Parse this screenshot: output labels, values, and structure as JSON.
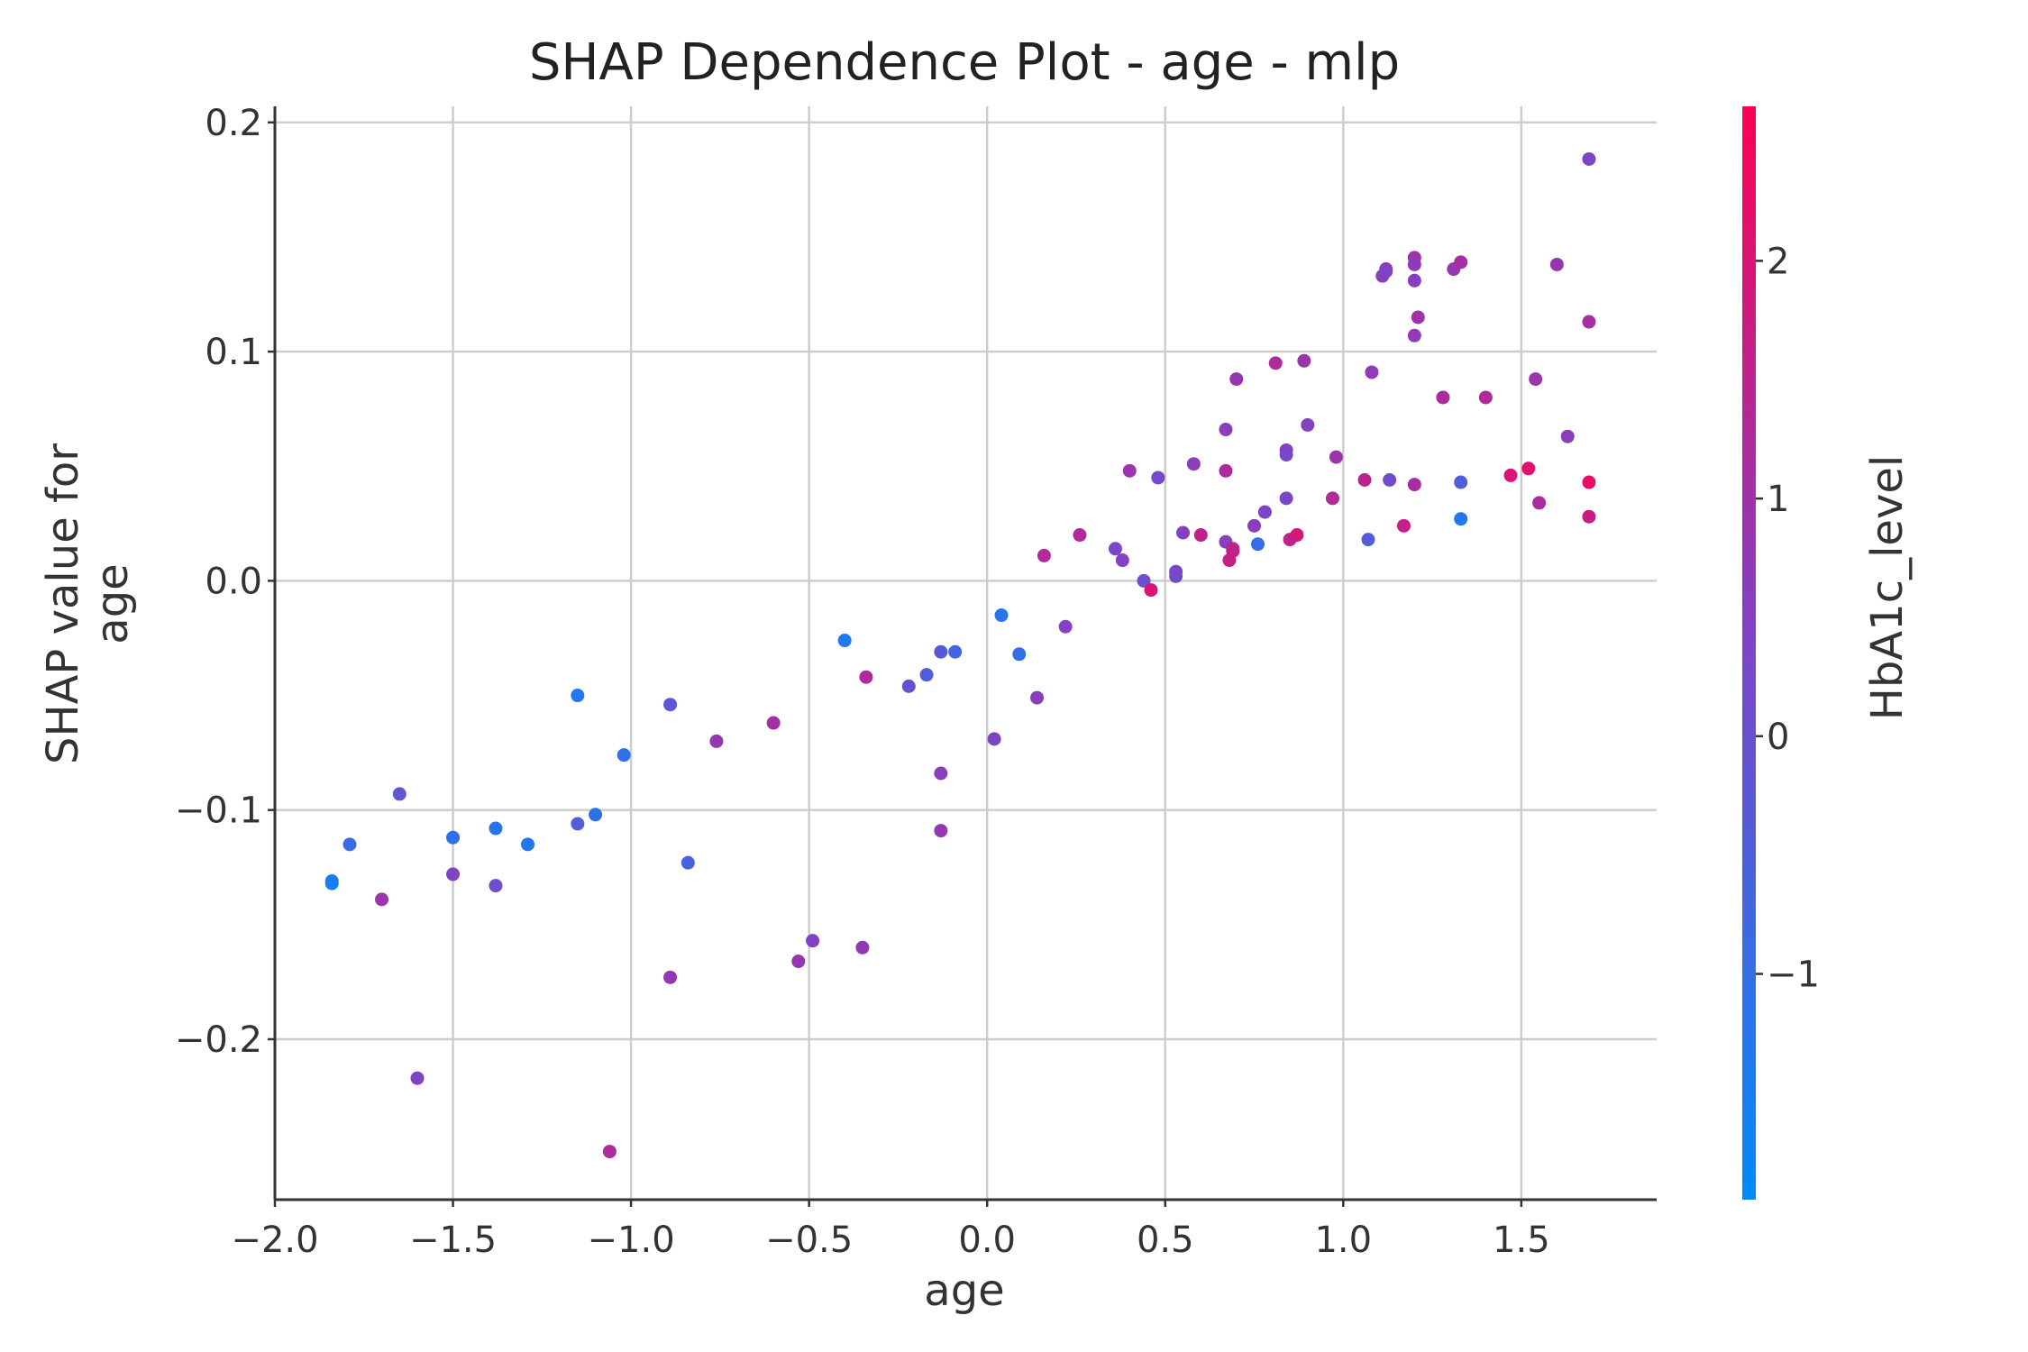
{
  "chart_data": {
    "type": "scatter",
    "title": "SHAP Dependence Plot - age - mlp",
    "xlabel": "age",
    "ylabel": "SHAP value for\nage",
    "xlim": [
      -2.0,
      1.88
    ],
    "ylim": [
      -0.27,
      0.207
    ],
    "xticks": [
      -2.0,
      -1.5,
      -1.0,
      -0.5,
      0.0,
      0.5,
      1.0,
      1.5
    ],
    "xtick_labels": [
      "−2.0",
      "−1.5",
      "−1.0",
      "−0.5",
      "0.0",
      "0.5",
      "1.0",
      "1.5"
    ],
    "yticks": [
      -0.2,
      -0.1,
      0.0,
      0.1,
      0.2
    ],
    "ytick_labels": [
      "−0.2",
      "−0.1",
      "0.0",
      "0.1",
      "0.2"
    ],
    "grid": true,
    "colorbar": {
      "label": "HbA1c_level",
      "range": [
        -1.95,
        2.65
      ],
      "ticks": [
        -1,
        0,
        1,
        2
      ],
      "tick_labels": [
        "−1",
        "0",
        "1",
        "2"
      ],
      "colors": [
        "#008bfb",
        "#ff0052"
      ]
    },
    "points": [
      {
        "x": -1.84,
        "y": -0.131,
        "c": -1.6
      },
      {
        "x": -1.84,
        "y": -0.132,
        "c": -1.5
      },
      {
        "x": -1.79,
        "y": -0.115,
        "c": -0.9
      },
      {
        "x": -1.7,
        "y": -0.139,
        "c": 0.9
      },
      {
        "x": -1.65,
        "y": -0.093,
        "c": -0.2
      },
      {
        "x": -1.6,
        "y": -0.217,
        "c": 0.4
      },
      {
        "x": -1.5,
        "y": -0.128,
        "c": 0.4
      },
      {
        "x": -1.5,
        "y": -0.112,
        "c": -1.1
      },
      {
        "x": -1.38,
        "y": -0.133,
        "c": 0.1
      },
      {
        "x": -1.38,
        "y": -0.108,
        "c": -1.2
      },
      {
        "x": -1.29,
        "y": -0.115,
        "c": -1.3
      },
      {
        "x": -1.15,
        "y": -0.05,
        "c": -1.3
      },
      {
        "x": -1.15,
        "y": -0.106,
        "c": -0.4
      },
      {
        "x": -1.1,
        "y": -0.102,
        "c": -1.1
      },
      {
        "x": -1.06,
        "y": -0.249,
        "c": 1.2
      },
      {
        "x": -1.02,
        "y": -0.076,
        "c": -1.1
      },
      {
        "x": -0.89,
        "y": -0.054,
        "c": -0.2
      },
      {
        "x": -0.89,
        "y": -0.173,
        "c": 0.8
      },
      {
        "x": -0.84,
        "y": -0.123,
        "c": -0.6
      },
      {
        "x": -0.76,
        "y": -0.07,
        "c": 0.8
      },
      {
        "x": -0.6,
        "y": -0.062,
        "c": 1.1
      },
      {
        "x": -0.53,
        "y": -0.166,
        "c": 0.8
      },
      {
        "x": -0.49,
        "y": -0.157,
        "c": 0.5
      },
      {
        "x": -0.4,
        "y": -0.026,
        "c": -1.4
      },
      {
        "x": -0.35,
        "y": -0.16,
        "c": 0.7
      },
      {
        "x": -0.34,
        "y": -0.042,
        "c": 1.2
      },
      {
        "x": -0.22,
        "y": -0.046,
        "c": 0.0
      },
      {
        "x": -0.17,
        "y": -0.041,
        "c": -0.4
      },
      {
        "x": -0.13,
        "y": -0.031,
        "c": -0.3
      },
      {
        "x": -0.13,
        "y": -0.084,
        "c": 0.6
      },
      {
        "x": -0.13,
        "y": -0.109,
        "c": 0.8
      },
      {
        "x": -0.09,
        "y": -0.031,
        "c": -0.7
      },
      {
        "x": 0.02,
        "y": -0.069,
        "c": 0.4
      },
      {
        "x": 0.04,
        "y": -0.015,
        "c": -1.2
      },
      {
        "x": 0.09,
        "y": -0.032,
        "c": -1.0
      },
      {
        "x": 0.14,
        "y": -0.051,
        "c": 0.6
      },
      {
        "x": 0.16,
        "y": 0.011,
        "c": 1.3
      },
      {
        "x": 0.22,
        "y": -0.02,
        "c": 0.5
      },
      {
        "x": 0.26,
        "y": 0.02,
        "c": 1.3
      },
      {
        "x": 0.36,
        "y": 0.014,
        "c": 0.3
      },
      {
        "x": 0.38,
        "y": 0.009,
        "c": 0.5
      },
      {
        "x": 0.4,
        "y": 0.048,
        "c": 0.9
      },
      {
        "x": 0.44,
        "y": 0.0,
        "c": 0.1
      },
      {
        "x": 0.46,
        "y": -0.004,
        "c": 2.0
      },
      {
        "x": 0.48,
        "y": 0.045,
        "c": 0.3
      },
      {
        "x": 0.53,
        "y": 0.002,
        "c": 0.2
      },
      {
        "x": 0.53,
        "y": 0.004,
        "c": 0.3
      },
      {
        "x": 0.55,
        "y": 0.021,
        "c": 0.5
      },
      {
        "x": 0.58,
        "y": 0.051,
        "c": 0.6
      },
      {
        "x": 0.6,
        "y": 0.02,
        "c": 1.5
      },
      {
        "x": 0.67,
        "y": 0.017,
        "c": 0.5
      },
      {
        "x": 0.67,
        "y": 0.066,
        "c": 0.6
      },
      {
        "x": 0.67,
        "y": 0.048,
        "c": 1.2
      },
      {
        "x": 0.68,
        "y": 0.009,
        "c": 1.6
      },
      {
        "x": 0.69,
        "y": 0.013,
        "c": 1.8
      },
      {
        "x": 0.69,
        "y": 0.014,
        "c": 1.5
      },
      {
        "x": 0.7,
        "y": 0.088,
        "c": 0.8
      },
      {
        "x": 0.75,
        "y": 0.024,
        "c": 0.6
      },
      {
        "x": 0.76,
        "y": 0.016,
        "c": -1.0
      },
      {
        "x": 0.78,
        "y": 0.03,
        "c": 0.4
      },
      {
        "x": 0.81,
        "y": 0.095,
        "c": 1.2
      },
      {
        "x": 0.84,
        "y": 0.057,
        "c": 0.6
      },
      {
        "x": 0.84,
        "y": 0.055,
        "c": 0.3
      },
      {
        "x": 0.84,
        "y": 0.036,
        "c": 0.3
      },
      {
        "x": 0.85,
        "y": 0.018,
        "c": 1.5
      },
      {
        "x": 0.87,
        "y": 0.02,
        "c": 1.9
      },
      {
        "x": 0.89,
        "y": 0.096,
        "c": 0.9
      },
      {
        "x": 0.9,
        "y": 0.068,
        "c": 0.5
      },
      {
        "x": 0.97,
        "y": 0.036,
        "c": 1.3
      },
      {
        "x": 0.98,
        "y": 0.054,
        "c": 0.9
      },
      {
        "x": 1.06,
        "y": 0.044,
        "c": 1.5
      },
      {
        "x": 1.07,
        "y": 0.018,
        "c": -0.4
      },
      {
        "x": 1.08,
        "y": 0.091,
        "c": 0.7
      },
      {
        "x": 1.11,
        "y": 0.133,
        "c": 0.6
      },
      {
        "x": 1.12,
        "y": 0.136,
        "c": 0.8
      },
      {
        "x": 1.12,
        "y": 0.135,
        "c": 0.4
      },
      {
        "x": 1.13,
        "y": 0.044,
        "c": 0.2
      },
      {
        "x": 1.17,
        "y": 0.024,
        "c": 1.6
      },
      {
        "x": 1.2,
        "y": 0.141,
        "c": 0.9
      },
      {
        "x": 1.2,
        "y": 0.138,
        "c": 0.7
      },
      {
        "x": 1.2,
        "y": 0.131,
        "c": 0.6
      },
      {
        "x": 1.2,
        "y": 0.107,
        "c": 0.7
      },
      {
        "x": 1.2,
        "y": 0.042,
        "c": 1.1
      },
      {
        "x": 1.21,
        "y": 0.115,
        "c": 1.0
      },
      {
        "x": 1.28,
        "y": 0.08,
        "c": 1.2
      },
      {
        "x": 1.31,
        "y": 0.136,
        "c": 0.8
      },
      {
        "x": 1.33,
        "y": 0.139,
        "c": 1.1
      },
      {
        "x": 1.33,
        "y": 0.043,
        "c": -0.4
      },
      {
        "x": 1.33,
        "y": 0.027,
        "c": -1.3
      },
      {
        "x": 1.4,
        "y": 0.08,
        "c": 1.3
      },
      {
        "x": 1.47,
        "y": 0.046,
        "c": 2.0
      },
      {
        "x": 1.52,
        "y": 0.049,
        "c": 2.1
      },
      {
        "x": 1.54,
        "y": 0.088,
        "c": 0.9
      },
      {
        "x": 1.55,
        "y": 0.034,
        "c": 1.2
      },
      {
        "x": 1.6,
        "y": 0.138,
        "c": 0.8
      },
      {
        "x": 1.63,
        "y": 0.063,
        "c": 0.6
      },
      {
        "x": 1.69,
        "y": 0.184,
        "c": 0.4
      },
      {
        "x": 1.69,
        "y": 0.113,
        "c": 1.1
      },
      {
        "x": 1.69,
        "y": 0.043,
        "c": 2.2
      },
      {
        "x": 1.69,
        "y": 0.028,
        "c": 1.7
      }
    ]
  }
}
